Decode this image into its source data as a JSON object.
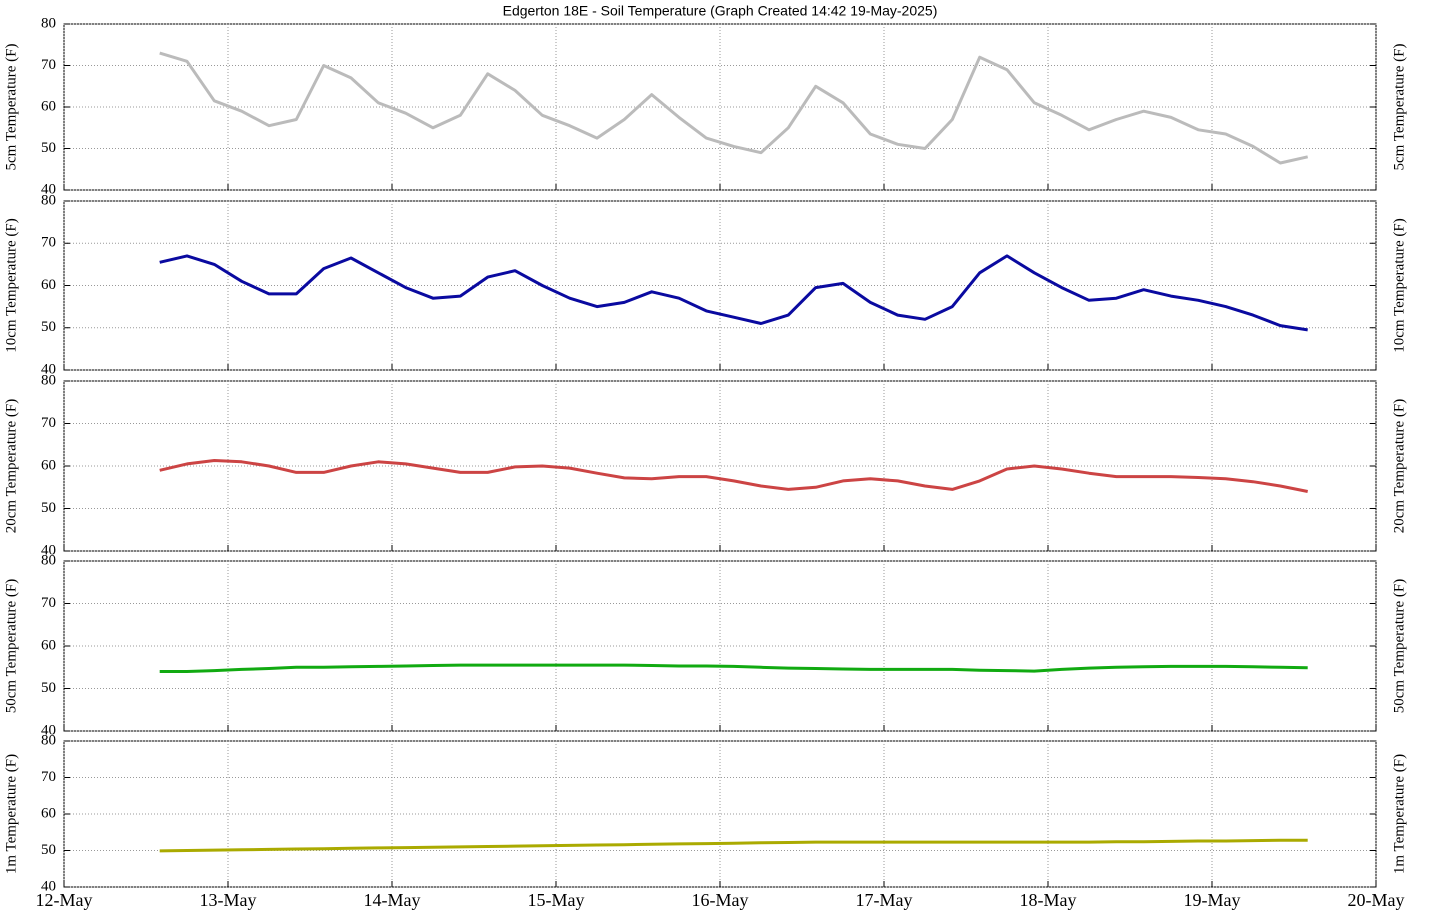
{
  "chart_data": [
    {
      "type": "line",
      "title": "Edgerton 18E - Soil Temperature (Graph Created 14:42 19-May-2025)",
      "ylabel": "5cm Temperature (F)",
      "ylim": [
        40,
        80
      ],
      "yticks": [
        40,
        50,
        60,
        70,
        80
      ],
      "grid": true,
      "x": [
        "2025-05-12T14:00",
        "2025-05-12T18:00",
        "2025-05-12T22:00",
        "2025-05-13T02:00",
        "2025-05-13T06:00",
        "2025-05-13T10:00",
        "2025-05-13T14:00",
        "2025-05-13T18:00",
        "2025-05-13T22:00",
        "2025-05-14T02:00",
        "2025-05-14T06:00",
        "2025-05-14T10:00",
        "2025-05-14T14:00",
        "2025-05-14T18:00",
        "2025-05-14T22:00",
        "2025-05-15T02:00",
        "2025-05-15T06:00",
        "2025-05-15T10:00",
        "2025-05-15T14:00",
        "2025-05-15T18:00",
        "2025-05-15T22:00",
        "2025-05-16T02:00",
        "2025-05-16T06:00",
        "2025-05-16T10:00",
        "2025-05-16T14:00",
        "2025-05-16T18:00",
        "2025-05-16T22:00",
        "2025-05-17T02:00",
        "2025-05-17T06:00",
        "2025-05-17T10:00",
        "2025-05-17T14:00",
        "2025-05-17T18:00",
        "2025-05-17T22:00",
        "2025-05-18T02:00",
        "2025-05-18T06:00",
        "2025-05-18T10:00",
        "2025-05-18T14:00",
        "2025-05-18T18:00",
        "2025-05-18T22:00",
        "2025-05-19T02:00",
        "2025-05-19T06:00",
        "2025-05-19T10:00",
        "2025-05-19T14:00"
      ],
      "series": [
        {
          "name": "5cm",
          "color": "#bbbbbb",
          "values": [
            73,
            71,
            61.5,
            59,
            55.5,
            57,
            70,
            67,
            61,
            58.5,
            55,
            58,
            68,
            64,
            58,
            55.5,
            52.5,
            57,
            63,
            57.5,
            52.5,
            50.5,
            49,
            55,
            65,
            61,
            53.5,
            51,
            50,
            57,
            72,
            69,
            61,
            58,
            54.5,
            57,
            59,
            57.5,
            54.5,
            53.5,
            50.5,
            46.5,
            48
          ]
        }
      ]
    },
    {
      "type": "line",
      "ylabel": "10cm Temperature (F)",
      "ylim": [
        40,
        80
      ],
      "yticks": [
        40,
        50,
        60,
        70,
        80
      ],
      "grid": true,
      "x": [
        "2025-05-12T14:00",
        "2025-05-12T18:00",
        "2025-05-12T22:00",
        "2025-05-13T02:00",
        "2025-05-13T06:00",
        "2025-05-13T10:00",
        "2025-05-13T14:00",
        "2025-05-13T18:00",
        "2025-05-13T22:00",
        "2025-05-14T02:00",
        "2025-05-14T06:00",
        "2025-05-14T10:00",
        "2025-05-14T14:00",
        "2025-05-14T18:00",
        "2025-05-14T22:00",
        "2025-05-15T02:00",
        "2025-05-15T06:00",
        "2025-05-15T10:00",
        "2025-05-15T14:00",
        "2025-05-15T18:00",
        "2025-05-15T22:00",
        "2025-05-16T02:00",
        "2025-05-16T06:00",
        "2025-05-16T10:00",
        "2025-05-16T14:00",
        "2025-05-16T18:00",
        "2025-05-16T22:00",
        "2025-05-17T02:00",
        "2025-05-17T06:00",
        "2025-05-17T10:00",
        "2025-05-17T14:00",
        "2025-05-17T18:00",
        "2025-05-17T22:00",
        "2025-05-18T02:00",
        "2025-05-18T06:00",
        "2025-05-18T10:00",
        "2025-05-18T14:00",
        "2025-05-18T18:00",
        "2025-05-18T22:00",
        "2025-05-19T02:00",
        "2025-05-19T06:00",
        "2025-05-19T10:00",
        "2025-05-19T14:00"
      ],
      "series": [
        {
          "name": "10cm",
          "color": "#0a0aa0",
          "values": [
            65.5,
            67,
            65,
            61,
            58,
            58,
            64,
            66.5,
            63,
            59.5,
            57,
            57.5,
            62,
            63.5,
            60,
            57,
            55,
            56,
            58.5,
            57,
            54,
            52.5,
            51,
            53,
            59.5,
            60.5,
            56,
            53,
            52,
            55,
            63,
            67,
            63,
            59.5,
            56.5,
            57,
            59,
            57.5,
            56.5,
            55,
            53,
            50.5,
            49.5
          ]
        }
      ]
    },
    {
      "type": "line",
      "ylabel": "20cm Temperature (F)",
      "ylim": [
        40,
        80
      ],
      "yticks": [
        40,
        50,
        60,
        70,
        80
      ],
      "grid": true,
      "x": [
        "2025-05-12T14:00",
        "2025-05-12T18:00",
        "2025-05-12T22:00",
        "2025-05-13T02:00",
        "2025-05-13T06:00",
        "2025-05-13T10:00",
        "2025-05-13T14:00",
        "2025-05-13T18:00",
        "2025-05-13T22:00",
        "2025-05-14T02:00",
        "2025-05-14T06:00",
        "2025-05-14T10:00",
        "2025-05-14T14:00",
        "2025-05-14T18:00",
        "2025-05-14T22:00",
        "2025-05-15T02:00",
        "2025-05-15T06:00",
        "2025-05-15T10:00",
        "2025-05-15T14:00",
        "2025-05-15T18:00",
        "2025-05-15T22:00",
        "2025-05-16T02:00",
        "2025-05-16T06:00",
        "2025-05-16T10:00",
        "2025-05-16T14:00",
        "2025-05-16T18:00",
        "2025-05-16T22:00",
        "2025-05-17T02:00",
        "2025-05-17T06:00",
        "2025-05-17T10:00",
        "2025-05-17T14:00",
        "2025-05-17T18:00",
        "2025-05-17T22:00",
        "2025-05-18T02:00",
        "2025-05-18T06:00",
        "2025-05-18T10:00",
        "2025-05-18T14:00",
        "2025-05-18T18:00",
        "2025-05-18T22:00",
        "2025-05-19T02:00",
        "2025-05-19T06:00",
        "2025-05-19T10:00",
        "2025-05-19T14:00"
      ],
      "series": [
        {
          "name": "20cm",
          "color": "#cc4444",
          "values": [
            59,
            60.5,
            61.3,
            61,
            60,
            58.5,
            58.5,
            60,
            61,
            60.5,
            59.5,
            58.5,
            58.5,
            59.8,
            60,
            59.5,
            58.3,
            57.2,
            57,
            57.5,
            57.5,
            56.5,
            55.3,
            54.5,
            55,
            56.5,
            57,
            56.5,
            55.3,
            54.5,
            56.5,
            59.3,
            60,
            59.3,
            58.3,
            57.5,
            57.5,
            57.5,
            57.3,
            57,
            56.3,
            55.3,
            54
          ]
        }
      ]
    },
    {
      "type": "line",
      "ylabel": "50cm Temperature (F)",
      "ylim": [
        40,
        80
      ],
      "yticks": [
        40,
        50,
        60,
        70,
        80
      ],
      "grid": true,
      "x": [
        "2025-05-12T14:00",
        "2025-05-12T18:00",
        "2025-05-12T22:00",
        "2025-05-13T02:00",
        "2025-05-13T06:00",
        "2025-05-13T10:00",
        "2025-05-13T14:00",
        "2025-05-13T18:00",
        "2025-05-13T22:00",
        "2025-05-14T02:00",
        "2025-05-14T06:00",
        "2025-05-14T10:00",
        "2025-05-14T14:00",
        "2025-05-14T18:00",
        "2025-05-14T22:00",
        "2025-05-15T02:00",
        "2025-05-15T06:00",
        "2025-05-15T10:00",
        "2025-05-15T14:00",
        "2025-05-15T18:00",
        "2025-05-15T22:00",
        "2025-05-16T02:00",
        "2025-05-16T06:00",
        "2025-05-16T10:00",
        "2025-05-16T14:00",
        "2025-05-16T18:00",
        "2025-05-16T22:00",
        "2025-05-17T02:00",
        "2025-05-17T06:00",
        "2025-05-17T10:00",
        "2025-05-17T14:00",
        "2025-05-17T18:00",
        "2025-05-17T22:00",
        "2025-05-18T02:00",
        "2025-05-18T06:00",
        "2025-05-18T10:00",
        "2025-05-18T14:00",
        "2025-05-18T18:00",
        "2025-05-18T22:00",
        "2025-05-19T02:00",
        "2025-05-19T06:00",
        "2025-05-19T10:00",
        "2025-05-19T14:00"
      ],
      "series": [
        {
          "name": "50cm",
          "color": "#11aa11",
          "values": [
            54,
            54,
            54.2,
            54.5,
            54.7,
            55,
            55,
            55.1,
            55.2,
            55.3,
            55.4,
            55.5,
            55.5,
            55.5,
            55.5,
            55.5,
            55.5,
            55.5,
            55.4,
            55.3,
            55.3,
            55.2,
            55,
            54.8,
            54.7,
            54.6,
            54.5,
            54.5,
            54.5,
            54.5,
            54.3,
            54.2,
            54.1,
            54.5,
            54.8,
            55,
            55.1,
            55.2,
            55.2,
            55.2,
            55.1,
            55,
            54.9
          ]
        }
      ]
    },
    {
      "type": "line",
      "ylabel": "1m Temperature (F)",
      "ylim": [
        40,
        80
      ],
      "yticks": [
        40,
        50,
        60,
        70,
        80
      ],
      "grid": true,
      "xlim": [
        "2025-05-12T00:00",
        "2025-05-20T00:00"
      ],
      "xticks": [
        {
          "value": "2025-05-12T00:00",
          "label": "12-May"
        },
        {
          "value": "2025-05-13T00:00",
          "label": "13-May"
        },
        {
          "value": "2025-05-14T00:00",
          "label": "14-May"
        },
        {
          "value": "2025-05-15T00:00",
          "label": "15-May"
        },
        {
          "value": "2025-05-16T00:00",
          "label": "16-May"
        },
        {
          "value": "2025-05-17T00:00",
          "label": "17-May"
        },
        {
          "value": "2025-05-18T00:00",
          "label": "18-May"
        },
        {
          "value": "2025-05-19T00:00",
          "label": "19-May"
        },
        {
          "value": "2025-05-20T00:00",
          "label": "20-May"
        }
      ],
      "x": [
        "2025-05-12T14:00",
        "2025-05-12T18:00",
        "2025-05-12T22:00",
        "2025-05-13T02:00",
        "2025-05-13T06:00",
        "2025-05-13T10:00",
        "2025-05-13T14:00",
        "2025-05-13T18:00",
        "2025-05-13T22:00",
        "2025-05-14T02:00",
        "2025-05-14T06:00",
        "2025-05-14T10:00",
        "2025-05-14T14:00",
        "2025-05-14T18:00",
        "2025-05-14T22:00",
        "2025-05-15T02:00",
        "2025-05-15T06:00",
        "2025-05-15T10:00",
        "2025-05-15T14:00",
        "2025-05-15T18:00",
        "2025-05-15T22:00",
        "2025-05-16T02:00",
        "2025-05-16T06:00",
        "2025-05-16T10:00",
        "2025-05-16T14:00",
        "2025-05-16T18:00",
        "2025-05-16T22:00",
        "2025-05-17T02:00",
        "2025-05-17T06:00",
        "2025-05-17T10:00",
        "2025-05-17T14:00",
        "2025-05-17T18:00",
        "2025-05-17T22:00",
        "2025-05-18T02:00",
        "2025-05-18T06:00",
        "2025-05-18T10:00",
        "2025-05-18T14:00",
        "2025-05-18T18:00",
        "2025-05-18T22:00",
        "2025-05-19T02:00",
        "2025-05-19T06:00",
        "2025-05-19T10:00",
        "2025-05-19T14:00"
      ],
      "series": [
        {
          "name": "1m",
          "color": "#aaaa00",
          "values": [
            49.9,
            50,
            50.1,
            50.2,
            50.3,
            50.4,
            50.5,
            50.6,
            50.7,
            50.8,
            50.9,
            51,
            51.1,
            51.2,
            51.3,
            51.4,
            51.5,
            51.6,
            51.7,
            51.8,
            51.9,
            52,
            52.1,
            52.2,
            52.3,
            52.3,
            52.3,
            52.3,
            52.3,
            52.3,
            52.3,
            52.3,
            52.3,
            52.3,
            52.3,
            52.4,
            52.4,
            52.5,
            52.6,
            52.6,
            52.7,
            52.8,
            52.8
          ]
        }
      ]
    }
  ]
}
